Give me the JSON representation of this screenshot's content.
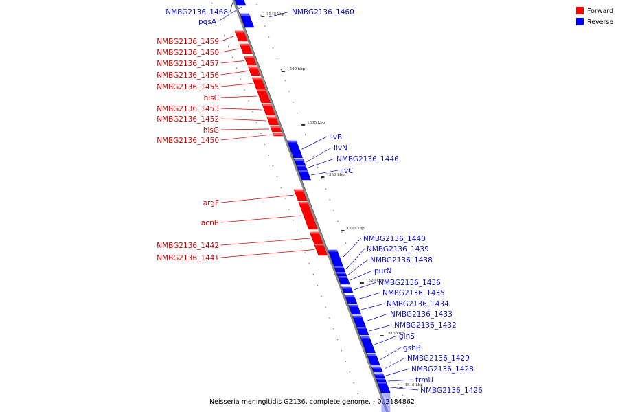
{
  "colors": {
    "forward": "#ff0000",
    "forward_dark": "#b00000",
    "reverse": "#0000ff",
    "reverse_dark": "#000090",
    "backbone": "#8a8a8a"
  },
  "legend": [
    {
      "label": "Forward",
      "color": "#ff0000"
    },
    {
      "label": "Reverse",
      "color": "#0000ff"
    }
  ],
  "caption": "Neisseria meningitidis G2136, complete genome. - 0..2184862",
  "kbp_ticks": [
    "1545 kbp",
    "1540 kbp",
    "1535 kbp",
    "1530 kbp",
    "1525 kbp",
    "1520 kbp",
    "1515 kbp",
    "1510 kbp"
  ],
  "forward_genes": [
    "NMBG2136_1459",
    "NMBG2136_1458",
    "NMBG2136_1457",
    "NMBG2136_1456",
    "NMBG2136_1455",
    "hisC",
    "NMBG2136_1453",
    "NMBG2136_1452",
    "hisG",
    "NMBG2136_1450",
    "argF",
    "acnB",
    "NMBG2136_1442",
    "NMBG2136_1441"
  ],
  "reverse_genes": [
    "NMBG2136_1468",
    "pgsA",
    "NMBG2136_1460",
    "ilvB",
    "ilvN",
    "NMBG2136_1446",
    "ilvC",
    "NMBG2136_1440",
    "NMBG2136_1439",
    "NMBG2136_1438",
    "purN",
    "NMBG2136_1436",
    "NMBG2136_1435",
    "NMBG2136_1434",
    "NMBG2136_1433",
    "NMBG2136_1432",
    "glnS",
    "gshB",
    "NMBG2136_1429",
    "NMBG2136_1428",
    "trmU",
    "NMBG2136_1426"
  ]
}
